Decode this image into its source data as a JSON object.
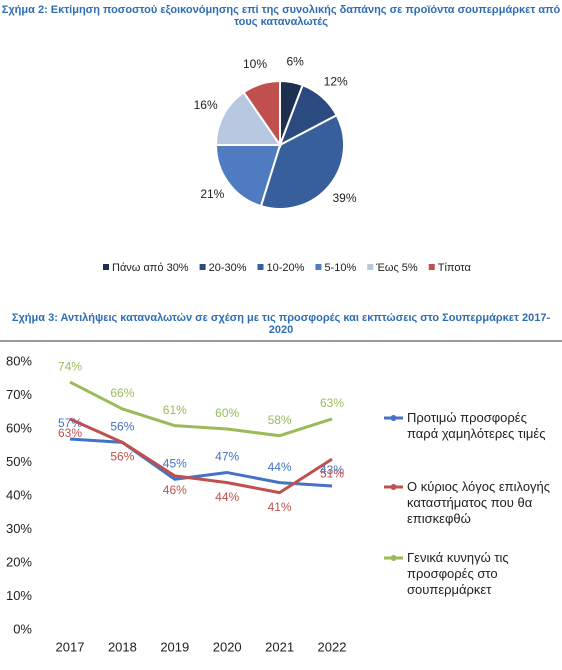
{
  "chart_data": [
    {
      "type": "pie",
      "title": "Σχήμα 2: Εκτίμηση ποσοστού εξοικονόμησης επί της συνολικής δαπάνης σε προϊόντα σουπερμάρκετ από τους καταναλωτές",
      "categories": [
        "Πάνω από 30%",
        "20-30%",
        "10-20%",
        "5-10%",
        "Έως 5%",
        "Τίποτα"
      ],
      "values": [
        6,
        12,
        39,
        21,
        16,
        10
      ],
      "value_labels": [
        "6%",
        "12%",
        "39%",
        "21%",
        "16%",
        "10%"
      ],
      "colors": [
        "#1f2f4f",
        "#2a4a80",
        "#365f9c",
        "#4f7cc0",
        "#b8c8e0",
        "#c0504d"
      ],
      "legend": "bottom"
    },
    {
      "type": "line",
      "title": "Σχήμα 3: Αντιλήψεις καταναλωτών σε σχέση με τις προσφορές και εκπτώσεις στο Σουπερμάρκετ 2017-2020",
      "categories": [
        "2017",
        "2018",
        "2019",
        "2020",
        "2021",
        "2022"
      ],
      "ylim": [
        0,
        80
      ],
      "yticks": [
        {
          "value": 0,
          "label": "0%"
        },
        {
          "value": 10,
          "label": "10%"
        },
        {
          "value": 20,
          "label": "20%"
        },
        {
          "value": 30,
          "label": "30%"
        },
        {
          "value": 40,
          "label": "40%"
        },
        {
          "value": 50,
          "label": "50%"
        },
        {
          "value": 60,
          "label": "60%"
        },
        {
          "value": 70,
          "label": "70%"
        },
        {
          "value": 80,
          "label": "80%"
        }
      ],
      "legend": "right",
      "series": [
        {
          "name": "Προτιμώ προσφορές παρά χαμηλότερες τιμές",
          "color": "#4472c4",
          "values": [
            57,
            56,
            45,
            47,
            44,
            43
          ],
          "value_labels": [
            "57%",
            "56%",
            "45%",
            "47%",
            "44%",
            "43%"
          ]
        },
        {
          "name": "Ο κύριος λόγος επιλογής καταστήματος που θα επισκεφθώ",
          "color": "#c0504d",
          "values": [
            63,
            56,
            46,
            44,
            41,
            51
          ],
          "value_labels": [
            "63%",
            "56%",
            "46%",
            "44%",
            "41%",
            "51%"
          ]
        },
        {
          "name": "Γενικά κυνηγώ τις προσφορές στο σουπερμάρκετ",
          "color": "#9bbb59",
          "values": [
            74,
            66,
            61,
            60,
            58,
            63
          ],
          "value_labels": [
            "74%",
            "66%",
            "61%",
            "60%",
            "58%",
            "63%"
          ]
        }
      ]
    }
  ]
}
